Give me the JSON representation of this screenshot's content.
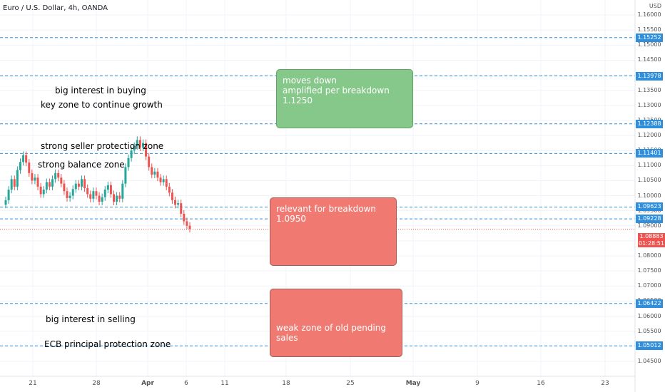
{
  "symbol": "Euro / U.S. Dollar, 4h, OANDA",
  "currency": "USD",
  "notes": {
    "buying": "big interest in buying",
    "key_zone": "key zone to continue growth",
    "seller_protection": "strong seller protection zone",
    "balance": "strong balance zone",
    "selling": "big interest in selling",
    "ecb": "ECB principal protection zone"
  },
  "boxes": {
    "green": "moves down\namplified per breakdown  1.1250",
    "red1": "relevant for breakdown 1.0950",
    "red2": "weak  zone of old pending sales"
  },
  "live_price": {
    "price": "1.08883",
    "timer": "01:28:51"
  },
  "colors": {
    "level_line": "#2f8fdc",
    "up_candle": "#26a69a",
    "down_candle": "#ef5350",
    "green_box": "#85c88a",
    "red_box": "#f07a72"
  },
  "chart_data": {
    "type": "candlestick",
    "y_range": [
      1.04,
      1.165
    ],
    "y_ticks": [
      "1.16000",
      "1.15500",
      "1.15000",
      "1.14500",
      "1.14000",
      "1.13500",
      "1.13000",
      "1.12500",
      "1.12000",
      "1.11500",
      "1.11000",
      "1.10500",
      "1.10000",
      "1.09500",
      "1.09000",
      "1.08500",
      "1.08000",
      "1.07500",
      "1.07000",
      "1.06500",
      "1.06000",
      "1.05500",
      "1.05000",
      "1.04500"
    ],
    "levels": [
      "1.15252",
      "1.13978",
      "1.12388",
      "1.11401",
      "1.09623",
      "1.09228",
      "1.06422",
      "1.05012"
    ],
    "levels_values": [
      1.15252,
      1.13978,
      1.12388,
      1.11401,
      1.09623,
      1.09228,
      1.06422,
      1.05012
    ],
    "x_labels": [
      {
        "label": "21",
        "major": false
      },
      {
        "label": "28",
        "major": false
      },
      {
        "label": "Apr",
        "major": true
      },
      {
        "label": "6",
        "major": false
      },
      {
        "label": "11",
        "major": false
      },
      {
        "label": "18",
        "major": false
      },
      {
        "label": "25",
        "major": false
      },
      {
        "label": "May",
        "major": true
      },
      {
        "label": "9",
        "major": false
      },
      {
        "label": "16",
        "major": false
      },
      {
        "label": "23",
        "major": false
      }
    ],
    "closes": [
      1.0985,
      1.102,
      1.1055,
      1.103,
      1.1085,
      1.1112,
      1.1135,
      1.111,
      1.1075,
      1.105,
      1.106,
      1.103,
      1.1005,
      1.102,
      1.1045,
      1.103,
      1.1055,
      1.1075,
      1.106,
      1.104,
      1.1015,
      1.0992,
      1.1,
      1.1022,
      1.104,
      1.103,
      1.1055,
      1.1025,
      1.1005,
      1.099,
      1.1015,
      1.1,
      1.098,
      1.0995,
      1.102,
      1.1035,
      1.1005,
      1.098,
      1.1,
      1.099,
      1.104,
      1.1095,
      1.1125,
      1.115,
      1.1165,
      1.1185,
      1.116,
      1.1175,
      1.113,
      1.1095,
      1.107,
      1.108,
      1.106,
      1.1045,
      1.1055,
      1.103,
      1.101,
      1.0985,
      1.097,
      1.0975,
      1.094,
      1.0915,
      1.09,
      1.089
    ],
    "current_price": 1.08883
  }
}
